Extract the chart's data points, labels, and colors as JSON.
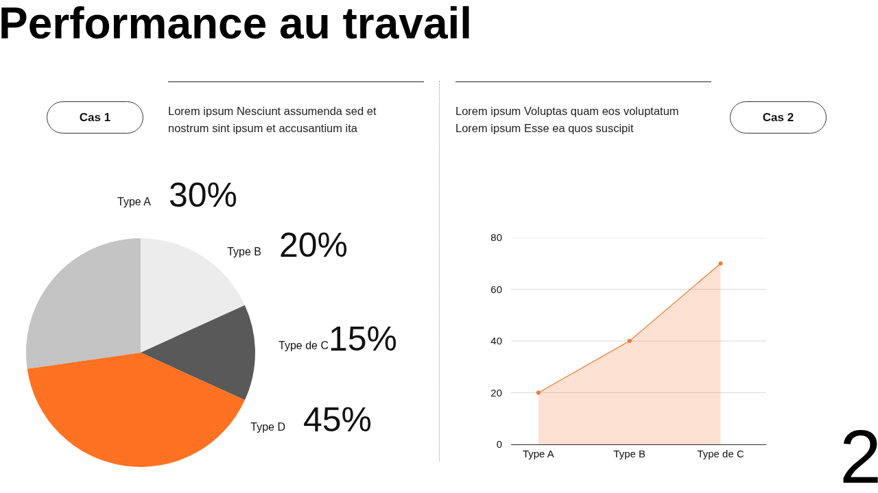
{
  "chart_data": [
    {
      "type": "pie",
      "title": "Cas 1",
      "subtitle": "Lorem ipsum Nesciunt assumenda sed et nostrum sint ipsum et accusantium ita",
      "annotations": [
        "Performance au travail"
      ],
      "categories": [
        "Type A",
        "Type B",
        "Type de C",
        "Type D"
      ],
      "values": [
        30,
        20,
        15,
        45
      ],
      "value_labels": [
        "30%",
        "20%",
        "15%",
        "45%"
      ],
      "colors": [
        "#c4c4c4",
        "#ececec",
        "#595959",
        "#ff7222"
      ],
      "legend": false
    },
    {
      "type": "area",
      "title": "Cas 2",
      "subtitle": "Lorem ipsum Voluptas quam eos voluptatum Lorem ipsum Esse ea quos suscipit",
      "annotations": [
        "2"
      ],
      "categories": [
        "Type A",
        "Type B",
        "Type de C"
      ],
      "series": [
        {
          "color": "#f47a35",
          "values": [
            20,
            40,
            70
          ]
        }
      ],
      "ylim": [
        0,
        80
      ],
      "yticks": [
        0,
        20,
        40,
        60,
        80
      ],
      "grid": "y",
      "marker": "circle",
      "line_style": "solid",
      "legend": false
    }
  ]
}
